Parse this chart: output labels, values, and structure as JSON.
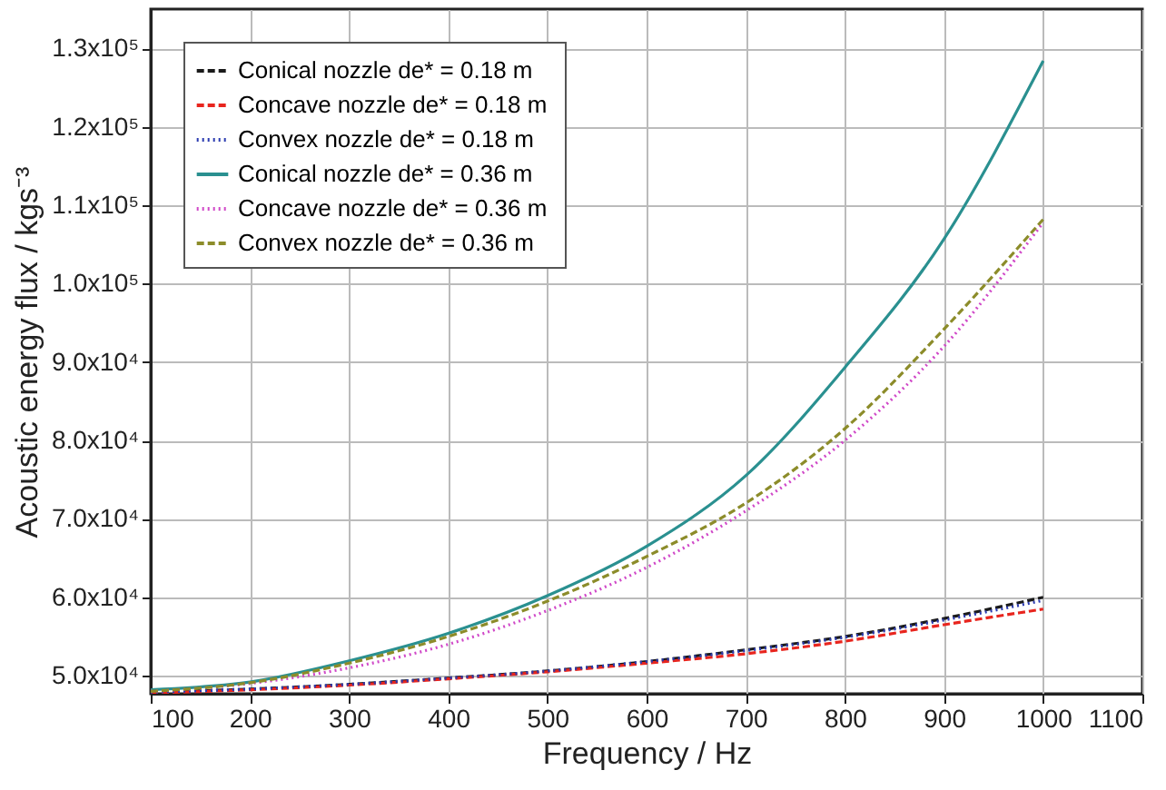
{
  "chart_data": {
    "type": "line",
    "xlabel": "Frequency / Hz",
    "ylabel": "Acoustic energy flux / kgs⁻³",
    "x": [
      100,
      200,
      300,
      400,
      500,
      600,
      700,
      800,
      900,
      1000
    ],
    "series": [
      {
        "name": "Conical nozzle   de* = 0.18 m",
        "color": "#1a1a1a",
        "line_style": "dashed",
        "values": [
          47900,
          48300,
          48900,
          49700,
          50600,
          51800,
          53300,
          55000,
          57300,
          60000
        ]
      },
      {
        "name": "Concave nozzle  de* = 0.18 m",
        "color": "#e8251e",
        "line_style": "dashed",
        "values": [
          47800,
          48200,
          48800,
          49600,
          50500,
          51600,
          52800,
          54400,
          56500,
          58500
        ]
      },
      {
        "name": "Convex nozzle   de* = 0.18 m",
        "color": "#2b3bb0",
        "line_style": "dotted",
        "values": [
          47900,
          48300,
          48900,
          49700,
          50600,
          51800,
          53200,
          54900,
          57100,
          59600
        ]
      },
      {
        "name": "Conical nozzle   de* = 0.36 m",
        "color": "#2a9090",
        "line_style": "solid",
        "values": [
          48200,
          49200,
          51900,
          55400,
          60200,
          66500,
          75500,
          89300,
          105700,
          128400
        ]
      },
      {
        "name": "Concave nozzle  de* = 0.36 m",
        "color": "#d048c8",
        "line_style": "dotted",
        "values": [
          48000,
          49000,
          51000,
          54000,
          58300,
          63800,
          71000,
          80000,
          92000,
          107800
        ]
      },
      {
        "name": "Convex nozzle   de* = 0.36 m",
        "color": "#8c8c2a",
        "line_style": "dashed",
        "values": [
          48000,
          49100,
          51600,
          55000,
          59500,
          65200,
          72000,
          81500,
          94200,
          108200
        ]
      }
    ],
    "xlim": [
      100,
      1100
    ],
    "xticks": [
      100,
      200,
      300,
      400,
      500,
      600,
      700,
      800,
      900,
      1000,
      1100
    ],
    "ylim": [
      47700,
      135000
    ],
    "yticks": [
      {
        "value": 50000,
        "label": "5.0x10⁴"
      },
      {
        "value": 60000,
        "label": "6.0x10⁴"
      },
      {
        "value": 70000,
        "label": "7.0x10⁴"
      },
      {
        "value": 80000,
        "label": "8.0x10⁴"
      },
      {
        "value": 90000,
        "label": "9.0x10⁴"
      },
      {
        "value": 100000,
        "label": "1.0x10⁵"
      },
      {
        "value": 110000,
        "label": "1.1x10⁵"
      },
      {
        "value": 120000,
        "label": "1.2x10⁵"
      },
      {
        "value": 130000,
        "label": "1.3x10⁵"
      }
    ],
    "grid": true,
    "legend": "top left",
    "marker": "none"
  }
}
